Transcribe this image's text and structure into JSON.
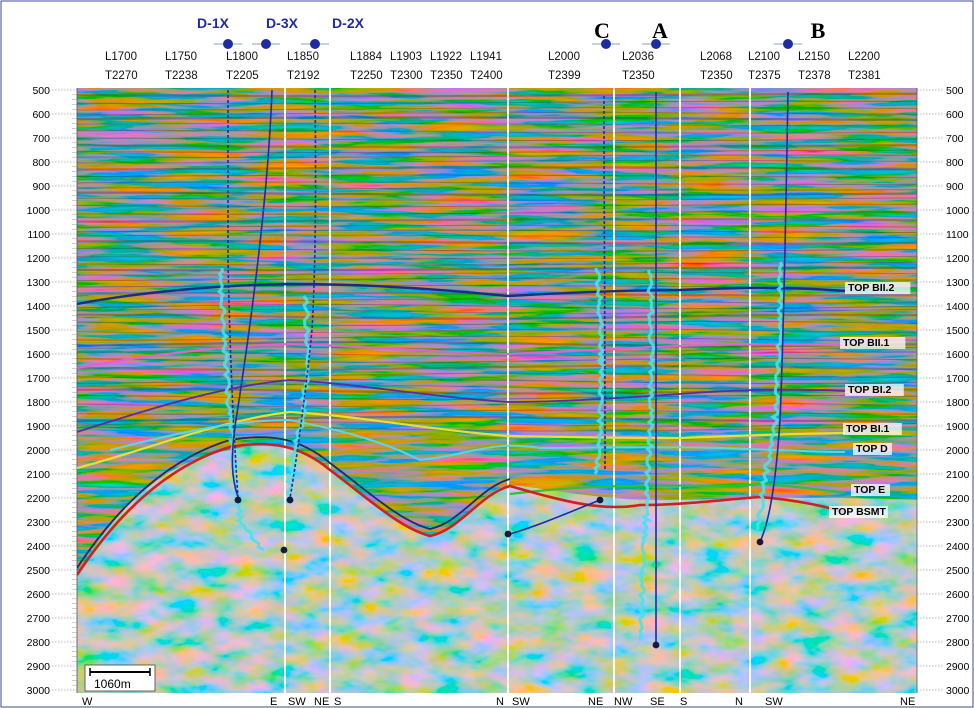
{
  "depth_ticks": [
    "500",
    "600",
    "700",
    "800",
    "900",
    "1000",
    "1100",
    "1200",
    "1300",
    "1400",
    "1500",
    "1600",
    "1700",
    "1800",
    "1900",
    "2000",
    "2100",
    "2200",
    "2300",
    "2400",
    "2500",
    "2600",
    "2700",
    "2800",
    "2900",
    "3000"
  ],
  "right_ticks": [
    "500",
    "600",
    "700",
    "800",
    "900",
    "1000",
    "1100",
    "1200",
    "1300",
    "1400",
    "1500",
    "1600",
    "1700",
    "1800",
    "1900",
    "2000",
    "2100",
    "2200",
    "2300",
    "2400",
    "2500",
    "2600",
    "2700",
    "2800",
    "2900",
    "3000"
  ],
  "line_labels": [
    {
      "l": "L1700",
      "t": "T2270"
    },
    {
      "l": "L1750",
      "t": "T2238"
    },
    {
      "l": "L1800",
      "t": "T2205"
    },
    {
      "l": "L1850",
      "t": "T2192"
    },
    {
      "l": "L1884",
      "t": "T2250"
    },
    {
      "l": "L1903",
      "t": "T2300"
    },
    {
      "l": "L1922",
      "t": "T2350"
    },
    {
      "l": "L1941",
      "t": "T2400"
    },
    {
      "l": "L2000",
      "t": "T2399"
    },
    {
      "l": "L2036",
      "t": "T2350"
    },
    {
      "l": "L2068",
      "t": "T2350"
    },
    {
      "l": "L2100",
      "t": "T2375"
    },
    {
      "l": "L2150",
      "t": "T2378"
    },
    {
      "l": "L2200",
      "t": "T2381"
    }
  ],
  "wells_top": [
    "D-1X",
    "D-3X",
    "D-2X"
  ],
  "wells_big": [
    "C",
    "A",
    "B"
  ],
  "bottom_labels": [
    "W",
    "E",
    "SW",
    "NE",
    "S",
    "N",
    "SW",
    "NE",
    "NW",
    "SE",
    "S",
    "N",
    "SW",
    "NE"
  ],
  "horizons": [
    {
      "label": "TOP BII.2",
      "color": "#1c2a8c"
    },
    {
      "label": "TOP BII.1",
      "color": "#e060d8"
    },
    {
      "label": "TOP BI.2",
      "color": "#5a2aa8"
    },
    {
      "label": "TOP BI.1",
      "color": "#e8e030"
    },
    {
      "label": "TOP D",
      "color": "#5ad8e0"
    },
    {
      "label": "TOP E",
      "color": "#30c030"
    },
    {
      "label": "TOP BSMT",
      "color": "#d02020"
    }
  ],
  "scale_label": "1060m",
  "colors": {
    "well_path": "#1f2ba0",
    "well_marker": "#1f2ba0",
    "cyan_log": "#4fe0e8"
  }
}
